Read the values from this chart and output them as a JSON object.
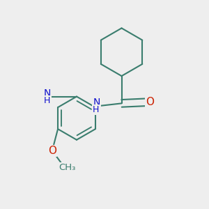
{
  "background_color": "#eeeeee",
  "bond_color": "#3a7d6e",
  "bond_width": 1.5,
  "atom_NH_color": "#1010cc",
  "atom_O_color": "#cc2000",
  "font_size_atoms": 10,
  "figsize": [
    3.0,
    3.0
  ],
  "dpi": 100,
  "xlim": [
    -1.6,
    1.6
  ],
  "ylim": [
    -1.8,
    1.8
  ]
}
